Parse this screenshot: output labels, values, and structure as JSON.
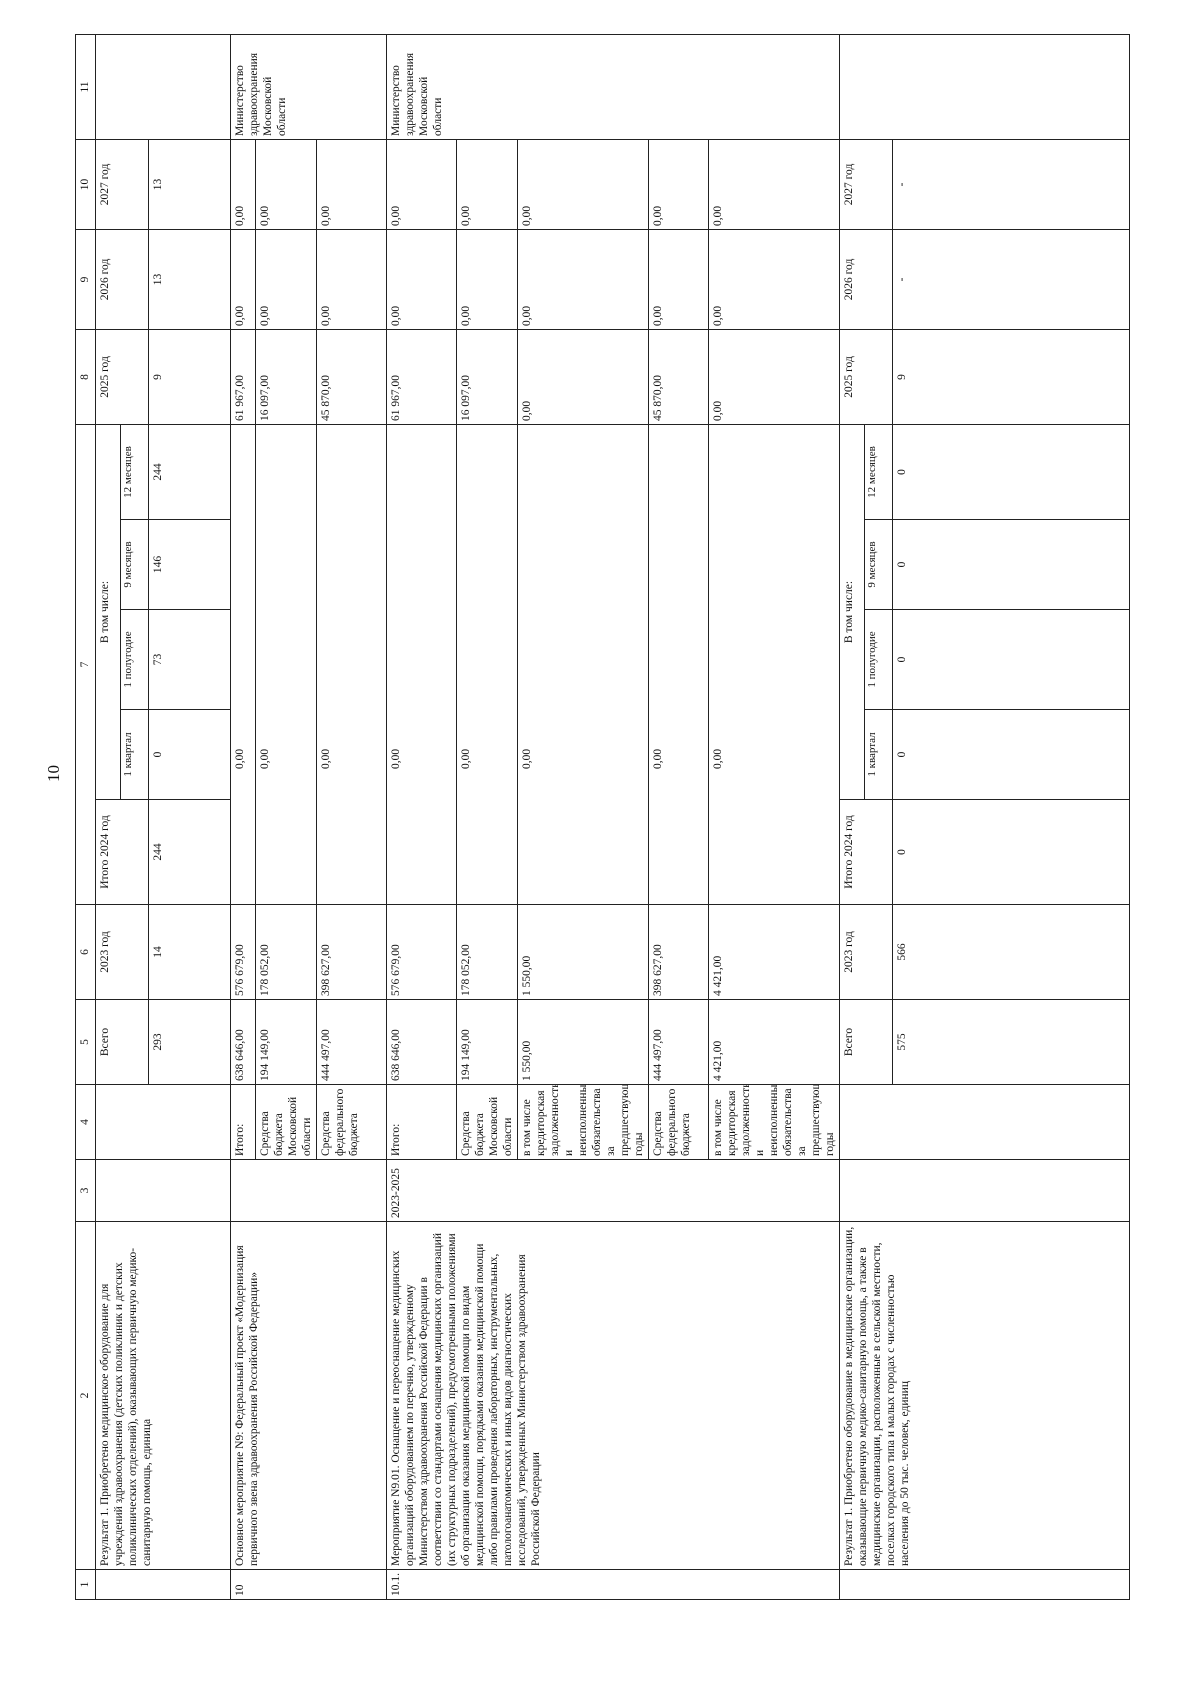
{
  "page_number": "10",
  "column_numbers": [
    "1",
    "2",
    "3",
    "4",
    "5",
    "6",
    "7",
    "8",
    "9",
    "10",
    "11"
  ],
  "result_1": {
    "label": "Результат 1. Приобретено медицинское оборудование для учреждений здравоохранения (детских поликлиник и детских поликлинических отделений), оказывающих первичную медико-санитарную помощь, единица",
    "headers": {
      "total": "Всего",
      "y2023": "2023 год",
      "total_2024": "Итого 2024 год",
      "including": "В том числе:",
      "quarters": [
        "1 квартал",
        "1 полугодие",
        "9 месяцев",
        "12 месяцев"
      ],
      "y2025": "2025 год",
      "y2026": "2026 год",
      "y2027": "2027 год"
    },
    "values": [
      "293",
      "14",
      "244",
      "0",
      "73",
      "146",
      "244",
      "9",
      "13",
      "13"
    ]
  },
  "measure_10": {
    "number": "10",
    "label": "Основное мероприятие N9: Федеральный проект «Модернизация первичного звена здравоохранения Российской Федерации»",
    "rows": [
      {
        "source": "Итого:",
        "values": [
          "638 646,00",
          "576 679,00",
          "0,00",
          "61 967,00",
          "0,00",
          "0,00"
        ]
      },
      {
        "source": "Средства бюджета Московской области",
        "values": [
          "194 149,00",
          "178 052,00",
          "0,00",
          "16 097,00",
          "0,00",
          "0,00"
        ]
      },
      {
        "source": "Средства федерального бюджета",
        "values": [
          "444 497,00",
          "398 627,00",
          "0,00",
          "45 870,00",
          "0,00",
          "0,00"
        ]
      }
    ],
    "executor": "Министерство здравоохранения Московской области"
  },
  "measure_10_1": {
    "number": "10.1.",
    "label": "Мероприятие N9.01. Оснащение и переоснащение медицинских организаций оборудованием по перечню, утвержденному Министерством здравоохранения Российской Федерации в соответствии со стандартами оснащения медицинских организаций (их структурных подразделений), предусмотренными положениями об организации оказания медицинской помощи по видам медицинской помощи, порядками оказания медицинской помощи либо правилами проведения лабораторных, инструментальных, патологоанатомических и иных видов диагностических исследований, утвержденных Министерством здравоохранения Российской Федерации",
    "period": "2023-2025",
    "rows": [
      {
        "source": "Итого:",
        "values": [
          "638 646,00",
          "576 679,00",
          "0,00",
          "61 967,00",
          "0,00",
          "0,00"
        ]
      },
      {
        "source": "Средства бюджета Московской области",
        "values": [
          "194 149,00",
          "178 052,00",
          "0,00",
          "16 097,00",
          "0,00",
          "0,00"
        ]
      },
      {
        "source": "в том числе кредиторская задолженность и неисполненные обязательства за предшествующие годы",
        "values": [
          "1 550,00",
          "1 550,00",
          "0,00",
          "0,00",
          "0,00",
          "0,00"
        ]
      },
      {
        "source": "Средства федерального бюджета",
        "values": [
          "444 497,00",
          "398 627,00",
          "0,00",
          "45 870,00",
          "0,00",
          "0,00"
        ]
      },
      {
        "source": "в том числе кредиторская задолженность и неисполненные обязательства за предшествующие годы",
        "values": [
          "4 421,00",
          "4 421,00",
          "0,00",
          "0,00",
          "0,00",
          "0,00"
        ]
      }
    ],
    "executor": "Министерство здравоохранения Московской области"
  },
  "result_2": {
    "label": "Результат 1. Приобретено оборудование в медицинские организации, оказывающие первичную медико-санитарную помощь, а также в медицинские организации, расположенные в сельской местности, поселках городского типа и малых городах с численностью населения до 50 тыс. человек, единиц",
    "headers": {
      "total": "Всего",
      "y2023": "2023 год",
      "total_2024": "Итого 2024 год",
      "including": "В том числе:",
      "quarters": [
        "1 квартал",
        "1 полугодие",
        "9 месяцев",
        "12 месяцев"
      ],
      "y2025": "2025 год",
      "y2026": "2026 год",
      "y2027": "2027 год"
    },
    "values": [
      "575",
      "566",
      "0",
      "0",
      "0",
      "0",
      "0",
      "9",
      "-",
      "-"
    ]
  }
}
